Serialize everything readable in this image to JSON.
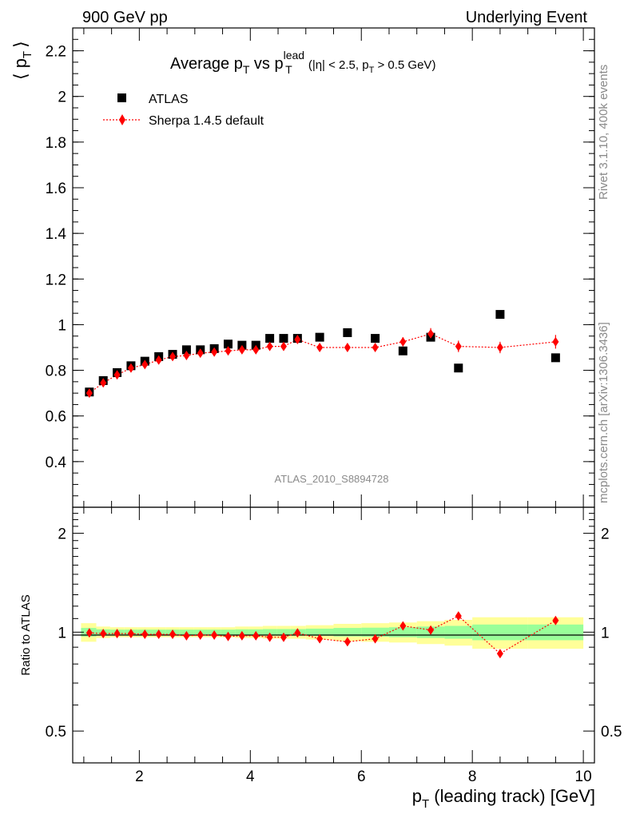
{
  "header": {
    "left": "900 GeV pp",
    "right": "Underlying Event"
  },
  "side_labels": {
    "rivet": "Rivet 3.1.10,  400k events",
    "mcplots": "mcplots.cern.ch [arXiv:1306.3436]"
  },
  "colors": {
    "data": "#000000",
    "mc": "#ff0000",
    "band_outer": "#ffff99",
    "band_inner": "#99ff99"
  },
  "chart_data": [
    {
      "type": "scatter",
      "title": "Average p_T vs p_T^lead (|η| < 2.5, p_T > 0.5 GeV)",
      "title_parts": {
        "main": "Average p",
        "sub1": "T",
        "vs": " vs p",
        "sup": "lead",
        "sub2": "T",
        "cut": " (|η| < 2.5, p",
        "cut_sub": "T",
        "cut_end": " > 0.5 GeV)"
      },
      "ylabel": "⟨ p_T ⟩",
      "ylabel_parts": {
        "left": "⟨ p",
        "sub": "T",
        "right": "⟩"
      },
      "watermark": "ATLAS_2010_S8894728",
      "xlim": [
        0.8,
        10.2
      ],
      "ylim": [
        0.2,
        2.3
      ],
      "y_ticks": [
        "0.4",
        "0.6",
        "0.8",
        "1",
        "1.2",
        "1.4",
        "1.6",
        "1.8",
        "2",
        "2.2"
      ],
      "legend_position": "top-left",
      "series": [
        {
          "name": "ATLAS",
          "marker": "square",
          "x": [
            1.1,
            1.35,
            1.6,
            1.85,
            2.1,
            2.35,
            2.6,
            2.85,
            3.1,
            3.35,
            3.6,
            3.85,
            4.1,
            4.35,
            4.6,
            4.85,
            5.25,
            5.75,
            6.25,
            6.75,
            7.25,
            7.75,
            8.5,
            9.5
          ],
          "y": [
            0.705,
            0.755,
            0.79,
            0.82,
            0.84,
            0.86,
            0.87,
            0.89,
            0.89,
            0.895,
            0.915,
            0.91,
            0.91,
            0.94,
            0.94,
            0.94,
            0.945,
            0.965,
            0.94,
            0.885,
            0.945,
            0.81,
            1.045,
            0.855
          ]
        },
        {
          "name": "Sherpa 1.4.5 default",
          "marker": "diamond",
          "line": "dotted",
          "x": [
            1.1,
            1.35,
            1.6,
            1.85,
            2.1,
            2.35,
            2.6,
            2.85,
            3.1,
            3.35,
            3.6,
            3.85,
            4.1,
            4.35,
            4.6,
            4.85,
            5.25,
            5.75,
            6.25,
            6.75,
            7.25,
            7.75,
            8.5,
            9.5
          ],
          "y": [
            0.7,
            0.745,
            0.78,
            0.81,
            0.825,
            0.845,
            0.86,
            0.865,
            0.875,
            0.88,
            0.885,
            0.89,
            0.89,
            0.905,
            0.905,
            0.935,
            0.9,
            0.9,
            0.9,
            0.925,
            0.96,
            0.905,
            0.9,
            0.925
          ],
          "err": [
            0.01,
            0.01,
            0.01,
            0.01,
            0.01,
            0.01,
            0.01,
            0.01,
            0.01,
            0.01,
            0.01,
            0.01,
            0.01,
            0.01,
            0.01,
            0.01,
            0.012,
            0.012,
            0.015,
            0.02,
            0.025,
            0.025,
            0.025,
            0.03
          ]
        }
      ]
    },
    {
      "type": "scatter",
      "ylabel": "Ratio to ATLAS",
      "xlabel": "p_T (leading track) [GeV]",
      "xlabel_parts": {
        "main": "p",
        "sub": "T",
        "rest": " (leading track) [GeV]"
      },
      "xlim": [
        0.8,
        10.2
      ],
      "ylim": [
        0.4,
        2.4
      ],
      "log_y": true,
      "x_ticks": [
        "2",
        "4",
        "6",
        "8",
        "10"
      ],
      "y_ticks": [
        "0.5",
        "1",
        "2"
      ],
      "bands": {
        "edges": [
          0.95,
          1.225,
          1.475,
          1.725,
          1.975,
          2.225,
          2.475,
          2.725,
          2.975,
          3.225,
          3.475,
          3.725,
          3.975,
          4.225,
          4.475,
          4.725,
          5.0,
          5.5,
          6.0,
          6.5,
          7.0,
          7.5,
          8.0,
          9.0,
          10.0
        ],
        "outer": [
          0.065,
          0.04,
          0.035,
          0.035,
          0.035,
          0.035,
          0.035,
          0.035,
          0.035,
          0.035,
          0.035,
          0.04,
          0.04,
          0.045,
          0.045,
          0.045,
          0.05,
          0.06,
          0.065,
          0.07,
          0.08,
          0.09,
          0.11,
          0.11
        ],
        "inner": [
          0.03,
          0.02,
          0.018,
          0.018,
          0.018,
          0.018,
          0.018,
          0.018,
          0.018,
          0.018,
          0.018,
          0.02,
          0.02,
          0.022,
          0.022,
          0.022,
          0.025,
          0.03,
          0.032,
          0.035,
          0.04,
          0.045,
          0.055,
          0.055
        ]
      },
      "series": [
        {
          "name": "Sherpa 1.4.5 default",
          "marker": "diamond",
          "x": [
            1.1,
            1.35,
            1.6,
            1.85,
            2.1,
            2.35,
            2.6,
            2.85,
            3.1,
            3.35,
            3.6,
            3.85,
            4.1,
            4.35,
            4.6,
            4.85,
            5.25,
            5.75,
            6.25,
            6.75,
            7.25,
            7.75,
            8.5,
            9.5
          ],
          "y": [
            0.995,
            0.99,
            0.99,
            0.99,
            0.985,
            0.985,
            0.985,
            0.975,
            0.98,
            0.98,
            0.97,
            0.975,
            0.975,
            0.965,
            0.965,
            0.995,
            0.955,
            0.935,
            0.955,
            1.045,
            1.015,
            1.12,
            0.86,
            1.085
          ],
          "err": [
            0.012,
            0.01,
            0.01,
            0.01,
            0.01,
            0.01,
            0.01,
            0.01,
            0.01,
            0.01,
            0.01,
            0.01,
            0.01,
            0.01,
            0.01,
            0.01,
            0.012,
            0.012,
            0.015,
            0.02,
            0.025,
            0.03,
            0.02,
            0.03
          ]
        }
      ]
    }
  ]
}
